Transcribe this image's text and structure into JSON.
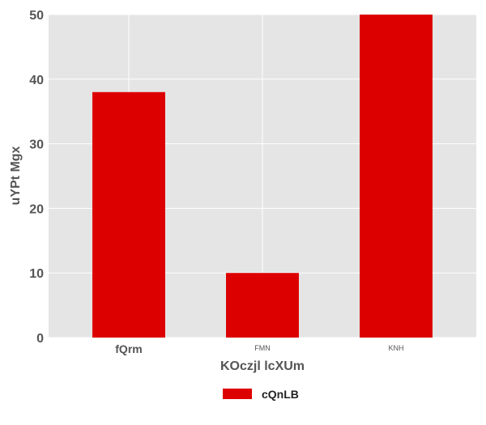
{
  "chart_data": {
    "type": "bar",
    "categories": [
      "fQrm",
      "FMN",
      "KNH"
    ],
    "series": [
      {
        "name": "cQnLB",
        "values": [
          38,
          10,
          50
        ]
      }
    ],
    "xlabel": "KOczjl lcXUm",
    "ylabel": "uYPt Mgx",
    "ylim": [
      0,
      50
    ],
    "yticks": [
      0,
      10,
      20,
      30,
      40,
      50
    ],
    "grid": true,
    "legend": "bottom-center",
    "colors": {
      "bar": "#dd0000",
      "plot_background": "#e5e5e5",
      "grid": "#ffffff"
    }
  }
}
